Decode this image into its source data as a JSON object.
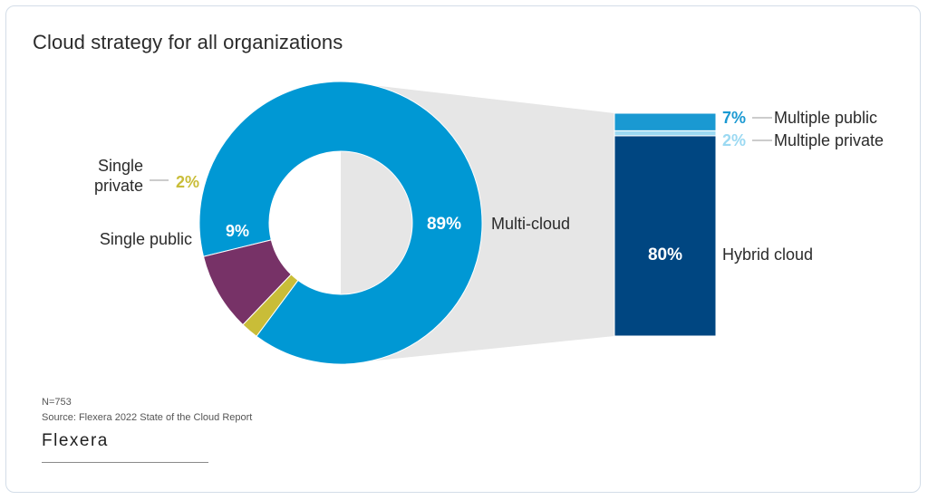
{
  "title": "Cloud strategy for all organizations",
  "footnote": {
    "n": "N=753",
    "source": "Source: Flexera 2022 State of the Cloud Report"
  },
  "logo": "Flexera",
  "colors": {
    "multi_cloud": "#0098d4",
    "single_public": "#773267",
    "single_private": "#c9bd38",
    "hybrid_cloud": "#004681",
    "multiple_public": "#1a99d2",
    "multiple_private": "#9bd9f2",
    "connector": "#e6e6e6",
    "label_dark": "#2b2b2b"
  },
  "chart_data": [
    {
      "type": "pie",
      "variant": "donut",
      "slices": [
        {
          "label": "Multi-cloud",
          "value": 89,
          "value_label": "89%"
        },
        {
          "label": "Single public",
          "value": 9,
          "value_label": "9%"
        },
        {
          "label": "Single private",
          "value": 2,
          "value_label": "2%"
        }
      ]
    },
    {
      "type": "bar",
      "variant": "stacked-breakdown-of-multi-cloud",
      "segments": [
        {
          "label": "Hybrid cloud",
          "value": 80,
          "value_label": "80%"
        },
        {
          "label": "Multiple private",
          "value": 2,
          "value_label": "2%"
        },
        {
          "label": "Multiple public",
          "value": 7,
          "value_label": "7%"
        }
      ]
    }
  ]
}
